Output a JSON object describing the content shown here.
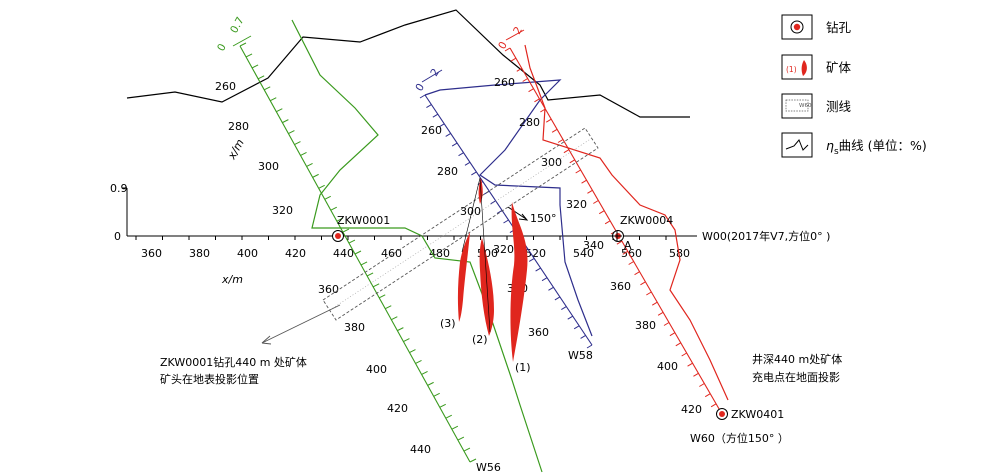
{
  "legend": {
    "items": [
      {
        "icon": "drill-hole-icon",
        "label": "钻孔"
      },
      {
        "icon": "ore-body-icon",
        "label": "矿体",
        "icon_text": "(1)"
      },
      {
        "icon": "survey-line-icon",
        "label": "测线",
        "icon_text": "W60"
      },
      {
        "icon": "eta-curve-icon",
        "label": "η",
        "sub": "s",
        "rest": "曲线 (单位：%)"
      }
    ]
  },
  "w00": {
    "label": "W00(2017年V7,方位0°  )",
    "x_label": "x/m",
    "y_tick_top": "0.9",
    "y_tick_zero": "0",
    "ticks": [
      "360",
      "380",
      "400",
      "420",
      "440",
      "460",
      "480",
      "500",
      "520",
      "540",
      "560",
      "580"
    ]
  },
  "w56": {
    "label": "W56",
    "scale_top": "0.7",
    "scale_zero": "0",
    "ticks": [
      "260",
      "280",
      "300",
      "320",
      "360",
      "380",
      "400",
      "420",
      "440"
    ]
  },
  "w58": {
    "label": "W58",
    "scale_top": "2",
    "scale_zero": "0",
    "ticks": [
      "260",
      "280",
      "300",
      "320",
      "340",
      "360"
    ],
    "angle_label": "150°"
  },
  "w60": {
    "label": "W60（方位150°  ）",
    "scale_top": "2",
    "scale_zero": "0",
    "ticks": [
      "260",
      "280",
      "300",
      "320",
      "340",
      "360",
      "380",
      "400",
      "420"
    ]
  },
  "holes": {
    "zkw0001": "ZKW0001",
    "zkw0004": "ZKW0004",
    "zkw0401": "ZKW0401",
    "a_point": "A"
  },
  "ore_labels": [
    "(1)",
    "(2)",
    "(3)"
  ],
  "annotations": {
    "left_line1": "ZKW0001钻孔440  m  处矿体",
    "left_line2": "矿头在地表投影位置",
    "right_line1": "井深440  m处矿体",
    "right_line2": "充电点在地面投影"
  },
  "axis_titles": {
    "x_m_w56": "x/m"
  },
  "colors": {
    "w00": "#000000",
    "w56": "#3a9a1e",
    "w58": "#2e2e8c",
    "w60": "#e0261e",
    "ore": "#e0261e"
  }
}
